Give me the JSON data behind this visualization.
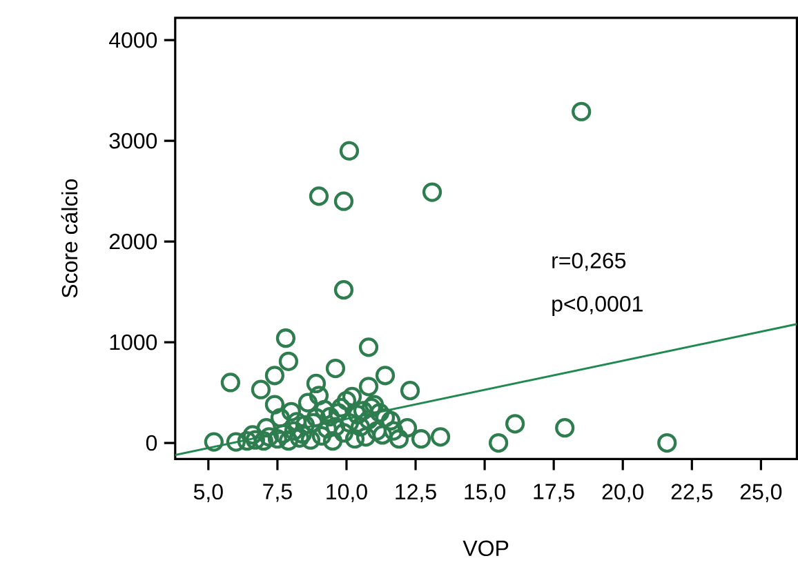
{
  "chart_data": {
    "type": "scatter",
    "xlabel": "VOP",
    "ylabel": "Score cálcio",
    "annotations": [
      "r=0,265",
      "p<0,0001"
    ],
    "xlim": [
      3.8,
      26.3
    ],
    "ylim": [
      -160,
      4220
    ],
    "xticks": [
      {
        "value": 5,
        "label": "5,0"
      },
      {
        "value": 7.5,
        "label": "7,5"
      },
      {
        "value": 10,
        "label": "10,0"
      },
      {
        "value": 12.5,
        "label": "12,5"
      },
      {
        "value": 15,
        "label": "15,0"
      },
      {
        "value": 17.5,
        "label": "17,5"
      },
      {
        "value": 20,
        "label": "20,0"
      },
      {
        "value": 22.5,
        "label": "22,5"
      },
      {
        "value": 25,
        "label": "25,0"
      }
    ],
    "yticks": [
      0,
      1000,
      2000,
      3000,
      4000
    ],
    "grid": false,
    "series": [
      {
        "marker": "circle",
        "color": "#2e7d4f",
        "x": [
          18.5,
          10.1,
          9.0,
          9.9,
          13.1,
          9.9,
          7.8,
          7.9,
          5.8,
          10.8,
          7.4,
          6.9,
          7.4,
          9.6,
          8.9,
          11.4,
          10.8,
          12.3,
          12.7,
          13.4,
          5.2,
          15.5,
          16.1,
          17.9,
          21.6,
          6.0,
          6.4,
          6.7,
          7.0,
          7.2,
          7.5,
          7.7,
          7.9,
          8.1,
          8.3,
          8.5,
          8.7,
          8.9,
          9.1,
          9.3,
          9.5,
          9.7,
          9.9,
          10.1,
          10.3,
          10.5,
          10.7,
          10.9,
          11.1,
          11.3,
          11.6,
          11.9,
          12.2,
          6.6,
          7.1,
          7.6,
          8.0,
          8.4,
          8.8,
          9.2,
          9.6,
          10.0,
          10.4,
          10.8,
          11.2,
          11.7,
          8.6,
          9.4,
          10.2,
          11.0,
          8.2,
          9.0,
          9.8,
          10.6,
          11.4
        ],
        "values": [
          3290,
          2900,
          2450,
          2400,
          2490,
          1520,
          1040,
          810,
          600,
          950,
          670,
          530,
          380,
          740,
          590,
          670,
          560,
          520,
          40,
          60,
          10,
          0,
          190,
          150,
          0,
          10,
          20,
          30,
          20,
          60,
          40,
          90,
          20,
          120,
          50,
          180,
          30,
          250,
          70,
          140,
          20,
          300,
          100,
          200,
          40,
          160,
          60,
          350,
          120,
          80,
          220,
          40,
          150,
          80,
          150,
          250,
          310,
          90,
          200,
          330,
          160,
          420,
          280,
          230,
          300,
          120,
          400,
          260,
          460,
          380,
          210,
          470,
          350,
          320,
          250
        ]
      },
      {
        "type": "line",
        "marker": "none",
        "line_style": "solid",
        "color": "#1f8a50",
        "x": [
          3.8,
          26.3
        ],
        "values": [
          -120,
          1180
        ]
      }
    ]
  }
}
